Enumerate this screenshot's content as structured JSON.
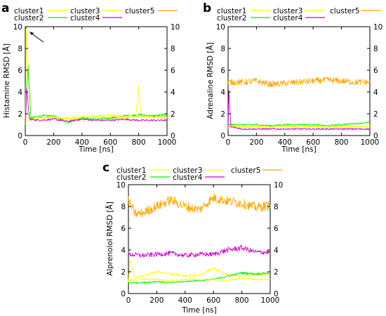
{
  "panels": [
    {
      "letter": "a",
      "ylabel": "Histamine RMSD [Å]",
      "xlabel": "Time [ns]",
      "xlim": [
        0,
        1000
      ],
      "ylim": [
        0,
        10
      ],
      "xticks": [
        0,
        200,
        400,
        600,
        800,
        1000
      ],
      "yticks": [
        0,
        2,
        4,
        6,
        8,
        10
      ],
      "right_axis_ticks": true,
      "annotation": "arrow pointing to initial spike near t=0"
    },
    {
      "letter": "b",
      "ylabel": "Adrenaline RMSD [Å]",
      "xlabel": "Time [ns]",
      "xlim": [
        0,
        1000
      ],
      "ylim": [
        0,
        10
      ],
      "xticks": [
        0,
        200,
        400,
        600,
        800,
        1000
      ],
      "yticks": [
        0,
        2,
        4,
        6,
        8,
        10
      ],
      "right_axis_ticks": true
    },
    {
      "letter": "c",
      "ylabel": "Alprenolol RMSD [Å]",
      "xlabel": "Time [ns]",
      "xlim": [
        0,
        1000
      ],
      "ylim": [
        0,
        10
      ],
      "xticks": [
        0,
        200,
        400,
        600,
        800,
        1000
      ],
      "yticks": [
        0,
        2,
        4,
        6,
        8,
        10
      ],
      "right_axis_ticks": true
    }
  ],
  "legend": {
    "items": [
      {
        "name": "cluster1",
        "color": "#ffff00"
      },
      {
        "name": "cluster2",
        "color": "#00ee00"
      },
      {
        "name": "cluster3",
        "color": "#ffff00"
      },
      {
        "name": "cluster4",
        "color": "#cc00cc"
      },
      {
        "name": "cluster5",
        "color": "#ffa500"
      }
    ],
    "placement": "above each panel"
  },
  "chart_data": [
    {
      "type": "line",
      "title": "",
      "xlabel": "Time [ns]",
      "ylabel": "Histamine RMSD [Å]",
      "xlim": [
        0,
        1000
      ],
      "ylim": [
        0,
        10
      ],
      "grid": false,
      "series": [
        {
          "name": "cluster1",
          "color": "#ffff00",
          "x": [
            0,
            10,
            40,
            100,
            200,
            300,
            400,
            500,
            600,
            700,
            780,
            800,
            820,
            900,
            1000
          ],
          "y": [
            1.5,
            9.5,
            1.6,
            1.6,
            1.7,
            1.5,
            1.6,
            1.7,
            1.7,
            1.6,
            1.8,
            4.3,
            1.8,
            1.7,
            1.7
          ]
        },
        {
          "name": "cluster2",
          "color": "#00ee00",
          "x": [
            0,
            10,
            20,
            40,
            100,
            200,
            300,
            400,
            500,
            600,
            700,
            800,
            900,
            1000
          ],
          "y": [
            1.2,
            4.0,
            6.2,
            1.6,
            1.8,
            1.8,
            1.2,
            1.6,
            1.5,
            1.6,
            1.8,
            1.9,
            1.8,
            1.9
          ]
        },
        {
          "name": "cluster3",
          "color": "#ffff00",
          "x": [
            0,
            100,
            200,
            300,
            400,
            500,
            600,
            700,
            800,
            900,
            1000
          ],
          "y": [
            1.3,
            1.6,
            1.7,
            1.6,
            1.7,
            1.8,
            1.9,
            1.7,
            1.8,
            1.7,
            1.6
          ]
        },
        {
          "name": "cluster4",
          "color": "#cc00cc",
          "x": [
            0,
            10,
            30,
            100,
            200,
            300,
            400,
            500,
            600,
            700,
            800,
            900,
            1000
          ],
          "y": [
            1.0,
            4.2,
            1.5,
            1.4,
            1.5,
            1.3,
            1.5,
            1.4,
            1.4,
            1.5,
            1.4,
            1.4,
            1.4
          ]
        },
        {
          "name": "cluster5",
          "color": "#ffa500",
          "x": [
            0,
            5,
            10
          ],
          "y": [
            10,
            10,
            9.8
          ]
        }
      ]
    },
    {
      "type": "line",
      "title": "",
      "xlabel": "Time [ns]",
      "ylabel": "Adrenaline RMSD [Å]",
      "xlim": [
        0,
        1000
      ],
      "ylim": [
        0,
        10
      ],
      "grid": false,
      "series": [
        {
          "name": "cluster1",
          "color": "#ffff00",
          "x": [
            0,
            100,
            200,
            300,
            400,
            500,
            600,
            700,
            800,
            900,
            1000
          ],
          "y": [
            0.9,
            0.8,
            0.9,
            0.8,
            0.9,
            0.8,
            0.9,
            0.8,
            0.9,
            0.8,
            0.9
          ]
        },
        {
          "name": "cluster2",
          "color": "#00ee00",
          "x": [
            0,
            100,
            200,
            300,
            400,
            500,
            600,
            700,
            800,
            900,
            1000
          ],
          "y": [
            1.0,
            1.0,
            1.0,
            0.9,
            1.0,
            1.0,
            1.0,
            0.9,
            1.0,
            1.1,
            1.2
          ]
        },
        {
          "name": "cluster3",
          "color": "#ffff00",
          "x": [
            0,
            100,
            200,
            300,
            400,
            500,
            600,
            700,
            800,
            900,
            1000
          ],
          "y": [
            0.8,
            0.8,
            0.8,
            0.8,
            0.8,
            0.8,
            0.8,
            0.8,
            0.8,
            0.8,
            0.8
          ]
        },
        {
          "name": "cluster4",
          "color": "#cc00cc",
          "x": [
            0,
            5,
            20,
            100,
            200,
            300,
            400,
            500,
            600,
            700,
            800,
            900,
            1000
          ],
          "y": [
            0.5,
            4.2,
            0.8,
            0.6,
            0.6,
            0.6,
            0.6,
            0.6,
            0.6,
            0.6,
            0.6,
            0.6,
            0.6
          ]
        },
        {
          "name": "cluster5",
          "color": "#ffa500",
          "x": [
            0,
            100,
            200,
            300,
            400,
            500,
            600,
            700,
            800,
            900,
            1000
          ],
          "y": [
            4.9,
            4.9,
            5.0,
            4.7,
            4.8,
            4.9,
            5.0,
            5.1,
            5.0,
            4.9,
            4.9
          ]
        }
      ]
    },
    {
      "type": "line",
      "title": "",
      "xlabel": "Time [ns]",
      "ylabel": "Alprenolol RMSD [Å]",
      "xlim": [
        0,
        1000
      ],
      "ylim": [
        0,
        10
      ],
      "grid": false,
      "series": [
        {
          "name": "cluster1",
          "color": "#ffff00",
          "x": [
            0,
            10,
            50,
            100,
            200,
            300,
            400,
            500,
            600,
            700,
            800,
            900,
            1000
          ],
          "y": [
            1.0,
            3.0,
            1.4,
            1.6,
            2.0,
            1.8,
            1.6,
            1.7,
            2.3,
            1.7,
            1.6,
            1.7,
            1.8
          ]
        },
        {
          "name": "cluster2",
          "color": "#00ee00",
          "x": [
            0,
            100,
            200,
            300,
            400,
            500,
            600,
            700,
            800,
            900,
            1000
          ],
          "y": [
            1.0,
            1.0,
            1.1,
            1.0,
            1.1,
            1.2,
            1.3,
            1.6,
            1.9,
            1.8,
            1.9
          ]
        },
        {
          "name": "cluster3",
          "color": "#ffff00",
          "x": [
            0,
            100,
            200,
            300,
            400,
            500,
            600,
            700,
            800,
            900,
            1000
          ],
          "y": [
            1.2,
            1.3,
            1.3,
            1.2,
            1.3,
            1.3,
            1.3,
            1.2,
            1.4,
            1.3,
            1.3
          ]
        },
        {
          "name": "cluster4",
          "color": "#cc00cc",
          "x": [
            0,
            100,
            200,
            300,
            400,
            500,
            600,
            700,
            800,
            900,
            1000
          ],
          "y": [
            3.6,
            3.5,
            3.6,
            3.7,
            3.5,
            3.6,
            3.6,
            4.0,
            4.2,
            3.8,
            3.8
          ]
        },
        {
          "name": "cluster5",
          "color": "#ffa500",
          "x": [
            0,
            50,
            100,
            200,
            300,
            400,
            500,
            600,
            700,
            800,
            900,
            1000
          ],
          "y": [
            8.5,
            7.3,
            7.4,
            8.0,
            8.6,
            8.0,
            7.7,
            8.8,
            8.5,
            8.3,
            7.9,
            8.1
          ]
        }
      ]
    }
  ]
}
